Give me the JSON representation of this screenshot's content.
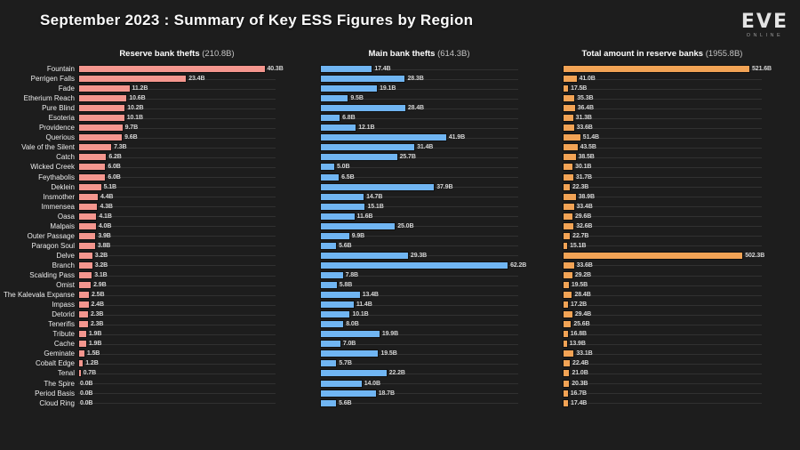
{
  "title": "September 2023 : Summary of Key ESS Figures by Region",
  "logo": {
    "line1": "EVE",
    "line2": "ONLINE"
  },
  "colors": {
    "background": "#1d1d1d",
    "reserve_thefts_bar": "#f4968e",
    "main_thefts_bar": "#70b5f2",
    "reserve_total_bar": "#f2a355",
    "gridline": "#313131",
    "text": "#ececec"
  },
  "chart_data": [
    {
      "type": "bar",
      "orientation": "horizontal",
      "title": "Reserve bank thefts",
      "total_label": "(210.8B)",
      "color": "#f4968e",
      "xlim": [
        0,
        42.5
      ],
      "grid": true,
      "value_suffix": "B",
      "categories": [
        "Fountain",
        "Perrigen Falls",
        "Fade",
        "Etherium Reach",
        "Pure Blind",
        "Esoteria",
        "Providence",
        "Querious",
        "Vale of the Silent",
        "Catch",
        "Wicked Creek",
        "Feythabolis",
        "Deklein",
        "Insmother",
        "Immensea",
        "Oasa",
        "Malpais",
        "Outer Passage",
        "Paragon Soul",
        "Delve",
        "Branch",
        "Scalding Pass",
        "Omist",
        "The Kalevala Expanse",
        "Impass",
        "Detorid",
        "Tenerifis",
        "Tribute",
        "Cache",
        "Geminate",
        "Cobalt Edge",
        "Tenal",
        "The Spire",
        "Period Basis",
        "Cloud Ring"
      ],
      "values": [
        40.3,
        23.4,
        11.2,
        10.6,
        10.2,
        10.1,
        9.7,
        9.6,
        7.3,
        6.2,
        6.0,
        6.0,
        5.1,
        4.4,
        4.3,
        4.1,
        4.0,
        3.9,
        3.8,
        3.2,
        3.2,
        3.1,
        2.9,
        2.5,
        2.4,
        2.3,
        2.3,
        1.9,
        1.9,
        1.5,
        1.2,
        0.7,
        0.0,
        0.0,
        0.0
      ]
    },
    {
      "type": "bar",
      "orientation": "horizontal",
      "title": "Main bank thefts",
      "total_label": "(614.3B)",
      "color": "#70b5f2",
      "xlim": [
        0,
        65.4
      ],
      "grid": true,
      "value_suffix": "B",
      "categories": [
        "Fountain",
        "Perrigen Falls",
        "Fade",
        "Etherium Reach",
        "Pure Blind",
        "Esoteria",
        "Providence",
        "Querious",
        "Vale of the Silent",
        "Catch",
        "Wicked Creek",
        "Feythabolis",
        "Deklein",
        "Insmother",
        "Immensea",
        "Oasa",
        "Malpais",
        "Outer Passage",
        "Paragon Soul",
        "Delve",
        "Branch",
        "Scalding Pass",
        "Omist",
        "The Kalevala Expanse",
        "Impass",
        "Detorid",
        "Tenerifis",
        "Tribute",
        "Cache",
        "Geminate",
        "Cobalt Edge",
        "Tenal",
        "The Spire",
        "Period Basis",
        "Cloud Ring"
      ],
      "values": [
        17.4,
        28.3,
        19.1,
        9.5,
        28.4,
        6.8,
        12.1,
        41.9,
        31.4,
        25.7,
        5.0,
        6.5,
        37.9,
        14.7,
        15.1,
        11.6,
        25.0,
        9.9,
        5.6,
        29.3,
        62.2,
        7.8,
        5.8,
        13.4,
        11.4,
        10.1,
        8.0,
        19.9,
        7.0,
        19.5,
        5.7,
        22.2,
        14.0,
        18.7,
        5.6
      ]
    },
    {
      "type": "bar",
      "orientation": "horizontal",
      "title": "Total amount in reserve banks",
      "total_label": "(1955.8B)",
      "color": "#f2a355",
      "xlim": [
        0,
        553.7
      ],
      "grid": true,
      "value_suffix": "B",
      "categories": [
        "Fountain",
        "Perrigen Falls",
        "Fade",
        "Etherium Reach",
        "Pure Blind",
        "Esoteria",
        "Providence",
        "Querious",
        "Vale of the Silent",
        "Catch",
        "Wicked Creek",
        "Feythabolis",
        "Deklein",
        "Insmother",
        "Immensea",
        "Oasa",
        "Malpais",
        "Outer Passage",
        "Paragon Soul",
        "Delve",
        "Branch",
        "Scalding Pass",
        "Omist",
        "The Kalevala Expanse",
        "Impass",
        "Detorid",
        "Tenerifis",
        "Tribute",
        "Cache",
        "Geminate",
        "Cobalt Edge",
        "Tenal",
        "The Spire",
        "Period Basis",
        "Cloud Ring"
      ],
      "values": [
        521.6,
        41.0,
        17.5,
        35.3,
        36.4,
        31.3,
        33.6,
        51.4,
        43.5,
        38.5,
        30.1,
        31.7,
        22.3,
        38.9,
        33.4,
        29.6,
        32.6,
        22.7,
        15.1,
        502.3,
        33.6,
        29.2,
        19.5,
        28.4,
        17.2,
        29.4,
        25.6,
        16.8,
        13.9,
        33.1,
        22.4,
        21.0,
        20.3,
        16.7,
        17.4
      ]
    }
  ]
}
